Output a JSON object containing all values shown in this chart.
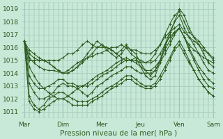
{
  "title": "",
  "xlabel": "Pression niveau de la mer( hPa )",
  "bg_color": "#c8e8d8",
  "grid_color": "#a0c8b8",
  "line_color": "#2d5a1e",
  "ylim": [
    1010.5,
    1019.5
  ],
  "yticks": [
    1011,
    1012,
    1013,
    1014,
    1015,
    1016,
    1017,
    1018,
    1019
  ],
  "day_labels": [
    "Mar",
    "Dim",
    "Mer",
    "Jeu",
    "Ven",
    "Sam"
  ],
  "day_positions": [
    0,
    8,
    16,
    24,
    32,
    39
  ],
  "num_points": 40,
  "marker_size": 2.2,
  "line_width": 0.75,
  "font_size": 7.5,
  "tick_font_size": 6.5,
  "series": [
    [
      1016.5,
      1015.2,
      1014.8,
      1014.5,
      1014.3,
      1014.2,
      1014.2,
      1014.1,
      1014.0,
      1014.2,
      1014.5,
      1014.8,
      1015.0,
      1015.2,
      1015.3,
      1015.5,
      1015.6,
      1015.8,
      1016.0,
      1016.0,
      1016.2,
      1016.0,
      1015.8,
      1015.8,
      1015.6,
      1015.5,
      1015.5,
      1015.8,
      1016.2,
      1016.8,
      1017.2,
      1017.5,
      1017.8,
      1017.2,
      1016.8,
      1016.5,
      1016.2,
      1015.8,
      1015.5,
      1015.2
    ],
    [
      1016.5,
      1014.5,
      1013.8,
      1013.2,
      1012.8,
      1012.5,
      1012.2,
      1012.0,
      1012.0,
      1012.2,
      1012.5,
      1012.8,
      1013.0,
      1013.2,
      1013.5,
      1013.8,
      1014.0,
      1014.2,
      1014.5,
      1014.8,
      1015.0,
      1015.2,
      1015.0,
      1015.0,
      1014.8,
      1014.8,
      1014.8,
      1015.0,
      1015.5,
      1016.2,
      1016.8,
      1017.2,
      1017.5,
      1016.8,
      1016.2,
      1015.8,
      1015.5,
      1015.2,
      1015.0,
      1014.8
    ],
    [
      1016.5,
      1015.0,
      1015.0,
      1015.0,
      1015.0,
      1014.8,
      1014.5,
      1014.2,
      1014.0,
      1014.0,
      1014.2,
      1014.5,
      1014.8,
      1015.2,
      1015.5,
      1016.0,
      1016.2,
      1016.0,
      1015.8,
      1015.5,
      1015.8,
      1016.2,
      1015.8,
      1015.5,
      1014.8,
      1014.2,
      1013.8,
      1014.2,
      1015.0,
      1016.2,
      1017.2,
      1018.0,
      1018.5,
      1017.5,
      1016.8,
      1016.2,
      1015.5,
      1014.8,
      1014.2,
      1014.0
    ],
    [
      1016.5,
      1015.5,
      1015.2,
      1015.0,
      1015.0,
      1015.0,
      1015.0,
      1015.0,
      1015.2,
      1015.5,
      1015.5,
      1015.8,
      1016.2,
      1016.5,
      1016.2,
      1016.0,
      1016.0,
      1016.0,
      1015.8,
      1015.5,
      1015.2,
      1015.0,
      1015.0,
      1015.2,
      1015.0,
      1014.8,
      1015.0,
      1015.5,
      1016.2,
      1017.0,
      1017.8,
      1018.5,
      1018.8,
      1018.0,
      1017.2,
      1016.8,
      1016.5,
      1016.0,
      1015.5,
      1015.0
    ],
    [
      1016.5,
      1013.2,
      1012.5,
      1012.0,
      1012.0,
      1012.2,
      1012.5,
      1013.0,
      1013.2,
      1013.0,
      1013.0,
      1012.8,
      1012.5,
      1012.2,
      1012.5,
      1013.0,
      1013.2,
      1013.5,
      1013.8,
      1014.0,
      1014.2,
      1014.5,
      1014.5,
      1014.2,
      1014.0,
      1014.0,
      1014.0,
      1014.2,
      1014.8,
      1015.5,
      1016.2,
      1017.0,
      1017.5,
      1016.8,
      1015.8,
      1015.0,
      1014.2,
      1013.5,
      1013.0,
      1012.8
    ],
    [
      1016.5,
      1012.2,
      1011.5,
      1011.2,
      1011.5,
      1012.0,
      1012.2,
      1012.5,
      1012.5,
      1012.2,
      1012.0,
      1011.8,
      1011.8,
      1011.8,
      1012.0,
      1012.2,
      1012.5,
      1012.8,
      1013.0,
      1013.2,
      1013.5,
      1013.8,
      1013.8,
      1013.5,
      1013.2,
      1013.0,
      1013.0,
      1013.2,
      1013.8,
      1014.5,
      1015.2,
      1016.0,
      1016.5,
      1015.8,
      1015.0,
      1014.2,
      1013.5,
      1013.0,
      1012.5,
      1012.2
    ],
    [
      1016.5,
      1011.8,
      1011.2,
      1011.0,
      1011.2,
      1011.5,
      1011.8,
      1012.0,
      1012.0,
      1011.8,
      1011.5,
      1011.5,
      1011.5,
      1011.5,
      1011.8,
      1012.0,
      1012.2,
      1012.5,
      1012.8,
      1013.0,
      1013.2,
      1013.5,
      1013.5,
      1013.2,
      1013.0,
      1012.8,
      1012.8,
      1013.0,
      1013.5,
      1014.2,
      1015.0,
      1015.8,
      1016.2,
      1015.5,
      1014.8,
      1014.2,
      1013.5,
      1013.0,
      1012.5,
      1012.2
    ],
    [
      1016.5,
      1013.8,
      1013.2,
      1012.8,
      1012.8,
      1013.0,
      1013.2,
      1013.5,
      1013.5,
      1013.2,
      1013.2,
      1013.0,
      1013.0,
      1013.0,
      1013.2,
      1013.5,
      1013.8,
      1014.0,
      1014.2,
      1014.5,
      1014.8,
      1015.0,
      1015.0,
      1014.8,
      1014.5,
      1014.2,
      1014.2,
      1014.5,
      1015.0,
      1015.8,
      1016.5,
      1017.2,
      1017.5,
      1016.8,
      1016.0,
      1015.2,
      1014.5,
      1014.0,
      1013.5,
      1013.2
    ],
    [
      1016.5,
      1015.8,
      1015.5,
      1015.2,
      1015.0,
      1014.8,
      1014.5,
      1014.2,
      1014.0,
      1014.0,
      1014.2,
      1014.5,
      1015.0,
      1015.5,
      1016.0,
      1016.5,
      1016.2,
      1015.8,
      1015.5,
      1015.2,
      1015.5,
      1016.0,
      1015.5,
      1015.2,
      1014.5,
      1013.8,
      1013.5,
      1013.8,
      1014.8,
      1016.0,
      1017.0,
      1018.0,
      1019.0,
      1018.5,
      1017.5,
      1016.8,
      1016.2,
      1015.5,
      1014.8,
      1014.5
    ]
  ]
}
